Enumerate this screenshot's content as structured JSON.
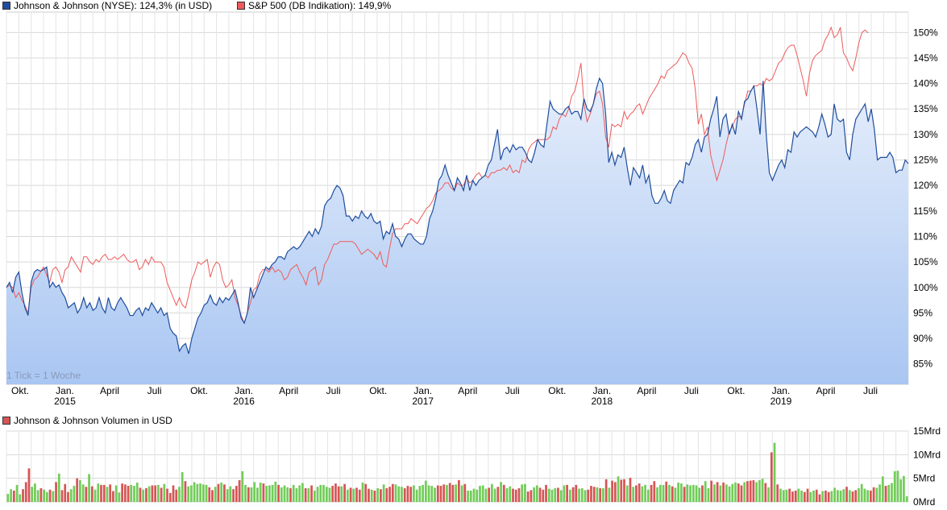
{
  "legend": {
    "series1_label": "Johnson & Johnson (NYSE): 124,3% (in USD)",
    "series2_label": "S&P 500 (DB Indikation): 149,9%",
    "volume_label": "Johnson & Johnson Volumen in USD"
  },
  "colors": {
    "series1": "#1f4e9e",
    "series2": "#ee5a5a",
    "area_top": "#e6eefb",
    "area_bottom": "#a9c6f2",
    "grid": "#d8d8d8",
    "volume_up": "#72cc5a",
    "volume_down": "#d65555"
  },
  "tick_note": "1 Tick = 1 Woche",
  "chart_data": [
    {
      "type": "line",
      "x_unit": "weeks",
      "x_range": [
        "2014-09",
        "2019-09"
      ],
      "ylim": [
        81,
        154
      ],
      "y_ticks": [
        85,
        90,
        95,
        100,
        105,
        110,
        115,
        120,
        125,
        130,
        135,
        140,
        145,
        150
      ],
      "y_tick_labels": [
        "85%",
        "90%",
        "95%",
        "100%",
        "105%",
        "110%",
        "115%",
        "120%",
        "125%",
        "130%",
        "135%",
        "140%",
        "145%",
        "150%"
      ],
      "x_tick_labels": [
        {
          "label": "Okt.",
          "sub": ""
        },
        {
          "label": "Jan.",
          "sub": "2015"
        },
        {
          "label": "April",
          "sub": ""
        },
        {
          "label": "Juli",
          "sub": ""
        },
        {
          "label": "Okt.",
          "sub": ""
        },
        {
          "label": "Jan.",
          "sub": "2016"
        },
        {
          "label": "April",
          "sub": ""
        },
        {
          "label": "Juli",
          "sub": ""
        },
        {
          "label": "Okt.",
          "sub": ""
        },
        {
          "label": "Jan.",
          "sub": "2017"
        },
        {
          "label": "April",
          "sub": ""
        },
        {
          "label": "Juli",
          "sub": ""
        },
        {
          "label": "Okt.",
          "sub": ""
        },
        {
          "label": "Jan.",
          "sub": "2018"
        },
        {
          "label": "April",
          "sub": ""
        },
        {
          "label": "Juli",
          "sub": ""
        },
        {
          "label": "Okt.",
          "sub": ""
        },
        {
          "label": "Jan.",
          "sub": "2019"
        },
        {
          "label": "April",
          "sub": ""
        },
        {
          "label": "Juli",
          "sub": ""
        }
      ],
      "grid": true,
      "series": [
        {
          "name": "Johnson & Johnson (NYSE)",
          "values": [
            100,
            101,
            99,
            102,
            103,
            99,
            96,
            94.5,
            101,
            103,
            103.5,
            103.2,
            103.5,
            104,
            100,
            101,
            100,
            100.5,
            99,
            98,
            96,
            96.5,
            97,
            95,
            96,
            98,
            96,
            97,
            95.5,
            96,
            98,
            96,
            95,
            98,
            96,
            95.5,
            97,
            98,
            97,
            96,
            94.5,
            94.5,
            95.5,
            96,
            94.5,
            96,
            95.5,
            97,
            96,
            95,
            96,
            94.5,
            95,
            92,
            91,
            90.5,
            87.5,
            88.5,
            89,
            87,
            90,
            92,
            94,
            95,
            96.5,
            97,
            98.5,
            97,
            96.5,
            98,
            97,
            98,
            97.5,
            98.5,
            99.5,
            97,
            94,
            93,
            95,
            100,
            98,
            99.5,
            101,
            102.5,
            104,
            103.5,
            104.5,
            105,
            106,
            106,
            105.5,
            107,
            107.5,
            108,
            107.5,
            108,
            109,
            110,
            111,
            110,
            111.5,
            110.5,
            112,
            116,
            117,
            117.5,
            119,
            120,
            119.5,
            118,
            114,
            114,
            113,
            114,
            113.5,
            115,
            114,
            113.5,
            114.5,
            113,
            112.5,
            113,
            109.5,
            111,
            110.5,
            112.5,
            110,
            109.5,
            108,
            109.5,
            110.5,
            110.5,
            109.5,
            109,
            108.5,
            108.5,
            110,
            113.5,
            115,
            117.5,
            121,
            122,
            124,
            122,
            120.5,
            119,
            121.5,
            120.5,
            119,
            122,
            119,
            121,
            120,
            121,
            121.5,
            122,
            124,
            125,
            128,
            131,
            125,
            127,
            127.5,
            126.5,
            128,
            127,
            127.5,
            127.5,
            126.5,
            125,
            124.5,
            126.5,
            129,
            128,
            127.5,
            132,
            136.5,
            135,
            134.5,
            134,
            134,
            135,
            135.5,
            134,
            134.5,
            134.5,
            133,
            137,
            135,
            134.5,
            136,
            139,
            141,
            140,
            134,
            124.5,
            126.5,
            124,
            126,
            125.5,
            127.5,
            123.5,
            120,
            123.5,
            122.5,
            121.5,
            124,
            120.5,
            122,
            118,
            116.5,
            116.5,
            117.5,
            119,
            117,
            116.5,
            119,
            120,
            121,
            120.5,
            124.5,
            124,
            125.5,
            128,
            129,
            126.5,
            129.5,
            130,
            133,
            135,
            137.5,
            129.5,
            133,
            134,
            130,
            132,
            130,
            134.5,
            133,
            136.5,
            137,
            138.5,
            139.5,
            135,
            130,
            140.5,
            130,
            122.5,
            121,
            122.5,
            124,
            125,
            123.5,
            127,
            126.5,
            130.5,
            129.5,
            130.5,
            131,
            131.5,
            131,
            130.5,
            129.5,
            131.5,
            134,
            132,
            129.5,
            130,
            136,
            133,
            132.5,
            133,
            126.5,
            125,
            130,
            133,
            134,
            135,
            136,
            132.5,
            135,
            131,
            125,
            125.5,
            125.5,
            125.5,
            126.5,
            125.5,
            122.5,
            123,
            123,
            125,
            124.3
          ]
        },
        {
          "name": "S&P 500 (DB Indikation)",
          "values": [
            100,
            100.5,
            100,
            98,
            99,
            97.5,
            96.5,
            95,
            100,
            101.5,
            102,
            103,
            104,
            102.5,
            101,
            103.5,
            104,
            103,
            101,
            103.5,
            104,
            106,
            105,
            104,
            103,
            106,
            106,
            105,
            104.5,
            105.5,
            105,
            106,
            106.5,
            105.5,
            105.5,
            106,
            105.5,
            106,
            106.5,
            105.5,
            105,
            105,
            105.5,
            103.5,
            104,
            105.5,
            104.5,
            106,
            105,
            105,
            105,
            104,
            101,
            99.5,
            98,
            96.5,
            98,
            96.5,
            96,
            98.5,
            101.5,
            103,
            105,
            104.5,
            105,
            105.5,
            102,
            104,
            105,
            104.5,
            101.5,
            100,
            100.5,
            101.5,
            98,
            96.5,
            94.5,
            93,
            95,
            97,
            99.5,
            100,
            102.5,
            103.5,
            103.5,
            103,
            104,
            103,
            103.5,
            103,
            101.5,
            102,
            103.5,
            104,
            104.5,
            103,
            102,
            100.5,
            103,
            103.5,
            104,
            100.5,
            101.5,
            104.5,
            105.5,
            107,
            108.5,
            108.5,
            109,
            109,
            109,
            109,
            109,
            108.5,
            107.5,
            106.5,
            107,
            107.5,
            107,
            106.5,
            105.5,
            107,
            104.5,
            104,
            107.5,
            110.5,
            111.5,
            111.5,
            111.5,
            112.5,
            112.5,
            113.5,
            113,
            112.5,
            113.5,
            114.5,
            115.5,
            116,
            117,
            118.5,
            119,
            119.5,
            120.5,
            120.5,
            119.5,
            119,
            120.5,
            120,
            120,
            121.5,
            120.5,
            121,
            122,
            122.5,
            121.5,
            122,
            121.5,
            122.5,
            122.5,
            123,
            123,
            123.5,
            123,
            124,
            122.5,
            123,
            122.5,
            125,
            124.5,
            127,
            128,
            128.5,
            129,
            129,
            129,
            129,
            129.5,
            131.5,
            131,
            133,
            134,
            133.5,
            135,
            137.5,
            138.5,
            141,
            144,
            136,
            132.5,
            134,
            136,
            138,
            138.5,
            136,
            129.5,
            127.5,
            132,
            131.5,
            132,
            131.5,
            134.5,
            133,
            134,
            134.5,
            135.5,
            136,
            134,
            135.5,
            137,
            138,
            139,
            140,
            141.5,
            141,
            142.5,
            143,
            143.5,
            144,
            145,
            146,
            145.5,
            144,
            143,
            139,
            132,
            134,
            130,
            131.5,
            126,
            123.5,
            121,
            123,
            125,
            128,
            130.5,
            131.5,
            133,
            133.5,
            133.5,
            136,
            138.5,
            138.5,
            139.5,
            139.5,
            140,
            139.5,
            141,
            140.5,
            141,
            142.5,
            144,
            144.5,
            146,
            147,
            147.5,
            147.5,
            145.5,
            143,
            140.5,
            137.5,
            142,
            144.5,
            145.5,
            146,
            146.5,
            148.5,
            149.5,
            151,
            149,
            149.5,
            151,
            146,
            145,
            143.5,
            142.5,
            145,
            148,
            150,
            150.5,
            149.9
          ]
        }
      ]
    },
    {
      "type": "bar",
      "title": "Johnson & Johnson Volumen in USD",
      "ylim": [
        0,
        15
      ],
      "y_ticks": [
        0,
        5,
        10,
        15
      ],
      "y_tick_labels": [
        "0Mrd",
        "5Mrd",
        "10Mrd",
        "15Mrd"
      ],
      "unit": "Mrd USD",
      "values": [
        1.7,
        2.7,
        2.4,
        3.6,
        1.6,
        2.7,
        4.2,
        7.1,
        3.2,
        3.9,
        2.5,
        2.9,
        2.6,
        2.1,
        2.6,
        2.3,
        4.2,
        6.0,
        2.5,
        3.8,
        2.1,
        2.7,
        3.4,
        5.0,
        4.6,
        3.7,
        3.2,
        5.9,
        3.3,
        2.6,
        3.9,
        3.6,
        3.6,
        3.2,
        3.7,
        2.3,
        3.5,
        2.0,
        3.9,
        3.7,
        3.4,
        3.6,
        3.4,
        4.1,
        3.0,
        2.6,
        2.9,
        3.3,
        3.5,
        3.5,
        3.6,
        3.0,
        3.8,
        2.8,
        1.9,
        3.5,
        2.6,
        3.2,
        6.3,
        4.4,
        3.3,
        3.5,
        4.2,
        3.8,
        3.9,
        3.7,
        3.6,
        3.1,
        2.5,
        3.2,
        3.8,
        4.1,
        3.7,
        2.7,
        3.3,
        2.7,
        3.4,
        4.6,
        6.5,
        3.6,
        3.1,
        3.1,
        4.2,
        3.0,
        4.1,
        3.9,
        3.4,
        3.5,
        3.6,
        4.3,
        3.6,
        3.1,
        3.5,
        3.1,
        2.9,
        3.6,
        2.9,
        3.5,
        4.0,
        2.9,
        2.9,
        3.5,
        2.4,
        3.2,
        3.6,
        3.6,
        3.2,
        3.0,
        3.4,
        3.9,
        3.3,
        3.3,
        3.8,
        2.6,
        3.0,
        2.8,
        3.0,
        2.6,
        4.1,
        3.8,
        2.8,
        2.6,
        2.4,
        2.9,
        2.7,
        3.7,
        2.9,
        3.2,
        3.8,
        3.7,
        3.3,
        3.2,
        2.9,
        3.4,
        3.2,
        3.5,
        2.6,
        3.4,
        3.6,
        4.5,
        3.5,
        3.4,
        3.0,
        3.5,
        3.4,
        3.7,
        3.6,
        4.0,
        3.6,
        3.7,
        4.6,
        3.5,
        3.8,
        2.4,
        2.4,
        2.8,
        2.6,
        3.4,
        3.5,
        2.8,
        3.0,
        3.8,
        2.8,
        3.2,
        4.2,
        3.6,
        2.9,
        3.3,
        2.8,
        2.6,
        2.9,
        3.7,
        3.8,
        2.2,
        2.5,
        3.1,
        3.5,
        3.0,
        2.6,
        3.6,
        2.8,
        2.6,
        2.9,
        3.0,
        2.5,
        3.5,
        3.6,
        2.6,
        3.1,
        3.6,
        2.8,
        2.9,
        2.5,
        2.6,
        3.4,
        3.2,
        3.1,
        2.9,
        2.9,
        4.8,
        3.0,
        4.5,
        4.2,
        5.4,
        4.7,
        4.8,
        3.5,
        5.1,
        3.2,
        3.5,
        3.9,
        3.3,
        3.6,
        2.6,
        3.6,
        4.4,
        3.1,
        3.6,
        3.6,
        4.3,
        3.6,
        3.3,
        3.0,
        4.1,
        3.9,
        3.2,
        3.7,
        3.5,
        3.6,
        3.5,
        3.0,
        3.5,
        4.4,
        2.9,
        4.5,
        3.7,
        4.2,
        3.5,
        4.1,
        3.7,
        3.3,
        3.8,
        4.1,
        3.9,
        3.5,
        4.2,
        4.4,
        4.5,
        4.6,
        4.2,
        4.6,
        4.9,
        4.0,
        3.1,
        10.5,
        12.5,
        3.7,
        2.8,
        2.5,
        2.6,
        2.8,
        2.2,
        2.4,
        2.8,
        2.4,
        2.1,
        2.8,
        2.1,
        2.4,
        2.6,
        1.6,
        2.3,
        2.4,
        2.1,
        2.3,
        3.0,
        2.5,
        2.4,
        2.7,
        3.2,
        2.5,
        2.2,
        2.5,
        2.9,
        3.8,
        2.8,
        2.5,
        2.4,
        3.1,
        3.0,
        3.7,
        5.4,
        3.4,
        3.6,
        4.0,
        6.5,
        6.6,
        4.8,
        5.5,
        1.2
      ]
    }
  ]
}
